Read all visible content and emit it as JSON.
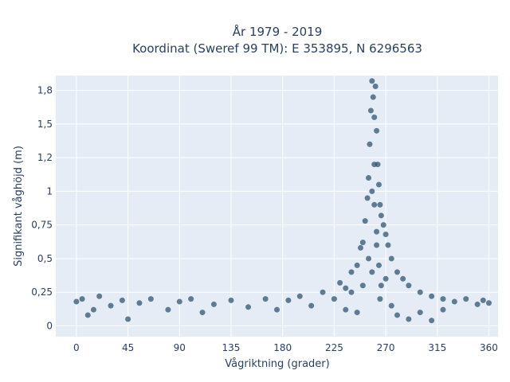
{
  "chart_data": {
    "type": "scatter",
    "title_line1": "År 1979 - 2019",
    "title_line2": "Koordinat (Sweref 99 TM): E 353895, N 6296563",
    "xlabel": "Vågriktning (grader)",
    "ylabel": "Signifikant våghöjd (m)",
    "xlim": [
      -18,
      368
    ],
    "ylim": [
      -0.08,
      1.86
    ],
    "x_ticks": [
      0,
      45,
      90,
      135,
      180,
      225,
      270,
      315,
      360
    ],
    "x_tick_labels": [
      "0",
      "45",
      "90",
      "135",
      "180",
      "225",
      "270",
      "315",
      "360"
    ],
    "y_ticks": [
      0,
      0.25,
      0.5,
      0.75,
      1,
      1.25,
      1.5,
      1.75
    ],
    "y_tick_labels": [
      "0",
      "0,25",
      "0,5",
      "0,75",
      "1",
      "1,2",
      "1,5",
      "1,8"
    ],
    "grid": true,
    "colors": {
      "marker": "#2f5670",
      "plot_bg": "#e5ecf6",
      "grid": "#ffffff"
    },
    "series": [
      {
        "points": [
          [
            0,
            0.18
          ],
          [
            5,
            0.2
          ],
          [
            10,
            0.08
          ],
          [
            15,
            0.12
          ],
          [
            20,
            0.22
          ],
          [
            30,
            0.15
          ],
          [
            40,
            0.19
          ],
          [
            45,
            0.05
          ],
          [
            55,
            0.17
          ],
          [
            65,
            0.2
          ],
          [
            80,
            0.12
          ],
          [
            90,
            0.18
          ],
          [
            100,
            0.2
          ],
          [
            110,
            0.1
          ],
          [
            120,
            0.16
          ],
          [
            135,
            0.19
          ],
          [
            150,
            0.14
          ],
          [
            165,
            0.2
          ],
          [
            175,
            0.12
          ],
          [
            185,
            0.19
          ],
          [
            195,
            0.22
          ],
          [
            205,
            0.15
          ],
          [
            215,
            0.25
          ],
          [
            225,
            0.2
          ],
          [
            230,
            0.32
          ],
          [
            235,
            0.28
          ],
          [
            240,
            0.4
          ],
          [
            245,
            0.45
          ],
          [
            248,
            0.58
          ],
          [
            250,
            0.62
          ],
          [
            252,
            0.78
          ],
          [
            254,
            0.95
          ],
          [
            255,
            1.1
          ],
          [
            256,
            1.35
          ],
          [
            257,
            1.6
          ],
          [
            258,
            1.82
          ],
          [
            259,
            1.7
          ],
          [
            260,
            1.55
          ],
          [
            261,
            1.78
          ],
          [
            262,
            1.45
          ],
          [
            263,
            1.2
          ],
          [
            264,
            1.05
          ],
          [
            265,
            0.9
          ],
          [
            266,
            0.82
          ],
          [
            268,
            0.75
          ],
          [
            270,
            0.68
          ],
          [
            272,
            0.6
          ],
          [
            275,
            0.5
          ],
          [
            280,
            0.4
          ],
          [
            285,
            0.35
          ],
          [
            290,
            0.3
          ],
          [
            300,
            0.25
          ],
          [
            310,
            0.22
          ],
          [
            320,
            0.2
          ],
          [
            330,
            0.18
          ],
          [
            340,
            0.2
          ],
          [
            350,
            0.16
          ],
          [
            355,
            0.19
          ],
          [
            360,
            0.17
          ],
          [
            250,
            0.3
          ],
          [
            255,
            0.5
          ],
          [
            258,
            0.4
          ],
          [
            262,
            0.6
          ],
          [
            265,
            0.2
          ],
          [
            270,
            0.35
          ],
          [
            275,
            0.15
          ],
          [
            280,
            0.08
          ],
          [
            245,
            0.1
          ],
          [
            240,
            0.25
          ],
          [
            235,
            0.12
          ],
          [
            290,
            0.05
          ],
          [
            300,
            0.1
          ],
          [
            310,
            0.04
          ],
          [
            320,
            0.12
          ],
          [
            260,
            0.9
          ],
          [
            260,
            1.2
          ],
          [
            258,
            1.0
          ],
          [
            262,
            0.7
          ],
          [
            264,
            0.45
          ],
          [
            266,
            0.3
          ]
        ]
      }
    ]
  }
}
